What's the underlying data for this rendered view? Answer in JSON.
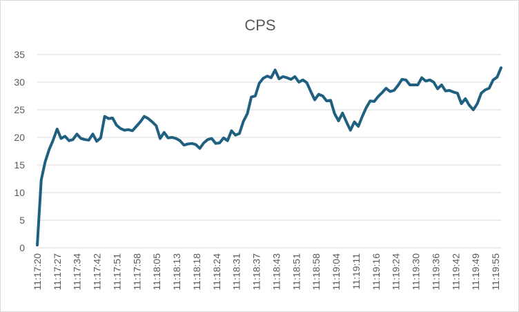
{
  "chart_data": {
    "type": "line",
    "title": "CPS",
    "ylim": [
      0,
      35
    ],
    "yticks": [
      "0",
      "5",
      "10",
      "15",
      "20",
      "25",
      "30",
      "35"
    ],
    "grid": true,
    "legend": "none",
    "xtick_labels": [
      "11:17:20",
      "11:17:27",
      "11:17:34",
      "11:17:42",
      "11:17:51",
      "11:17:58",
      "11:18:05",
      "11:18:13",
      "11:18:18",
      "11:18:24",
      "11:18:31",
      "11:18:37",
      "11:18:43",
      "11:18:51",
      "11:18:58",
      "11:19:04",
      "11:19:11",
      "11:19:16",
      "11:19:24",
      "11:19:30",
      "11:19:36",
      "11:19:42",
      "11:19:49",
      "11:19:55"
    ],
    "line_color": "#1f5f7f",
    "grid_color": "#d9d9d9",
    "series": [
      {
        "values": [
          0.5,
          12.3,
          15.6,
          17.8,
          19.5,
          21.5,
          19.8,
          20.2,
          19.4,
          19.6,
          20.6,
          19.8,
          19.6,
          19.5,
          20.6,
          19.3,
          19.9,
          23.8,
          23.4,
          23.5,
          22.2,
          21.6,
          21.3,
          21.4,
          21.2,
          22.0,
          22.8,
          23.8,
          23.4,
          22.8,
          22.1,
          19.8,
          20.9,
          19.9,
          20.0,
          19.8,
          19.4,
          18.6,
          18.8,
          18.9,
          18.7,
          18.0,
          19.0,
          19.6,
          19.8,
          18.9,
          19.0,
          19.9,
          19.4,
          21.2,
          20.4,
          20.7,
          22.9,
          24.3,
          27.3,
          27.5,
          29.8,
          30.7,
          31.1,
          30.8,
          32.2,
          30.6,
          31.0,
          30.8,
          30.5,
          31.0,
          30.0,
          30.4,
          29.9,
          28.3,
          26.8,
          27.8,
          27.5,
          26.6,
          26.7,
          24.3,
          23.0,
          24.4,
          22.8,
          21.3,
          22.8,
          22.0,
          23.8,
          25.4,
          26.6,
          26.5,
          27.4,
          28.1,
          28.9,
          28.3,
          28.5,
          29.4,
          30.5,
          30.4,
          29.5,
          29.5,
          29.5,
          30.8,
          30.2,
          30.4,
          30.0,
          28.8,
          29.5,
          28.4,
          28.5,
          28.2,
          28.0,
          26.1,
          27.0,
          25.8,
          25.0,
          26.1,
          28.0,
          28.6,
          28.9,
          30.4,
          30.9,
          32.6
        ]
      }
    ]
  }
}
